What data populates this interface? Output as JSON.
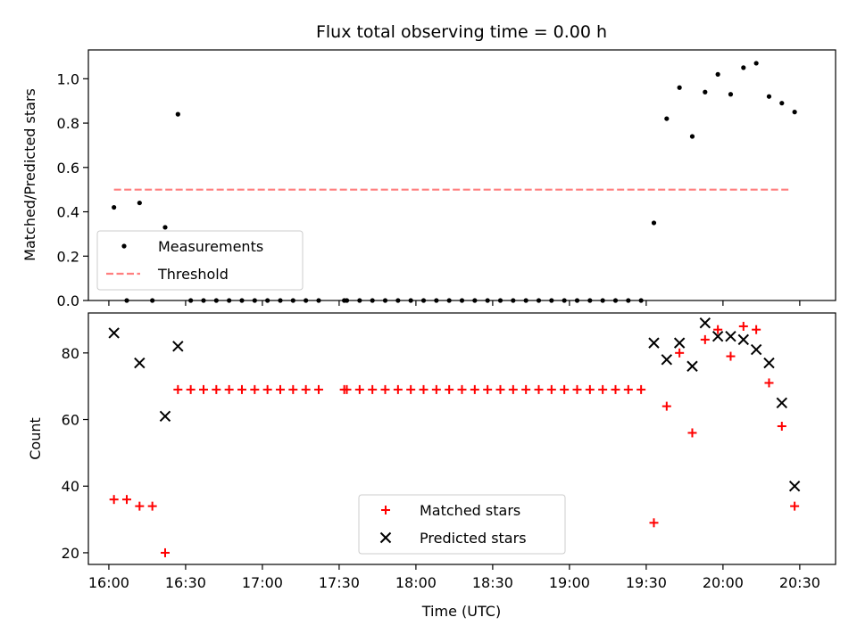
{
  "chart_data": [
    {
      "type": "scatter",
      "title": "Flux total observing time = 0.00 h",
      "xlabel": "",
      "ylabel": "Matched/Predicted stars",
      "xlim": [
        "15:52",
        "20:44"
      ],
      "ylim": [
        0,
        1.13
      ],
      "yticks": [
        "0.0",
        "0.2",
        "0.4",
        "0.6",
        "0.8",
        "1.0"
      ],
      "legend_placement": "lower-left",
      "series": [
        {
          "name": "Measurements",
          "color": "#000000",
          "marker": "dot",
          "points": [
            [
              "16:02",
              0.42
            ],
            [
              "16:07",
              0.0
            ],
            [
              "16:12",
              0.44
            ],
            [
              "16:17",
              0.0
            ],
            [
              "16:22",
              0.33
            ],
            [
              "16:27",
              0.84
            ],
            [
              "16:32",
              0.0
            ],
            [
              "16:37",
              0.0
            ],
            [
              "16:42",
              0.0
            ],
            [
              "16:47",
              0.0
            ],
            [
              "16:52",
              0.0
            ],
            [
              "16:57",
              0.0
            ],
            [
              "17:02",
              0.0
            ],
            [
              "17:07",
              0.0
            ],
            [
              "17:12",
              0.0
            ],
            [
              "17:17",
              0.0
            ],
            [
              "17:22",
              0.0
            ],
            [
              "17:32",
              0.0
            ],
            [
              "17:33",
              0.0
            ],
            [
              "17:38",
              0.0
            ],
            [
              "17:43",
              0.0
            ],
            [
              "17:48",
              0.0
            ],
            [
              "17:53",
              0.0
            ],
            [
              "17:58",
              0.0
            ],
            [
              "18:03",
              0.0
            ],
            [
              "18:08",
              0.0
            ],
            [
              "18:13",
              0.0
            ],
            [
              "18:18",
              0.0
            ],
            [
              "18:23",
              0.0
            ],
            [
              "18:28",
              0.0
            ],
            [
              "18:33",
              0.0
            ],
            [
              "18:38",
              0.0
            ],
            [
              "18:43",
              0.0
            ],
            [
              "18:48",
              0.0
            ],
            [
              "18:53",
              0.0
            ],
            [
              "18:58",
              0.0
            ],
            [
              "19:03",
              0.0
            ],
            [
              "19:08",
              0.0
            ],
            [
              "19:13",
              0.0
            ],
            [
              "19:18",
              0.0
            ],
            [
              "19:23",
              0.0
            ],
            [
              "19:28",
              0.0
            ],
            [
              "19:33",
              0.35
            ],
            [
              "19:38",
              0.82
            ],
            [
              "19:43",
              0.96
            ],
            [
              "19:48",
              0.74
            ],
            [
              "19:53",
              0.94
            ],
            [
              "19:58",
              1.02
            ],
            [
              "20:03",
              0.93
            ],
            [
              "20:08",
              1.05
            ],
            [
              "20:13",
              1.07
            ],
            [
              "20:18",
              0.92
            ],
            [
              "20:23",
              0.89
            ],
            [
              "20:28",
              0.85
            ]
          ]
        },
        {
          "name": "Threshold",
          "color": "#ff7f7f",
          "marker": "dashed-line",
          "points": [
            [
              "16:02",
              0.5
            ],
            [
              "20:26",
              0.5
            ]
          ]
        }
      ]
    },
    {
      "type": "scatter",
      "title": "",
      "xlabel": "Time (UTC)",
      "ylabel": "Count",
      "xlim": [
        "15:52",
        "20:44"
      ],
      "ylim": [
        16.5,
        92
      ],
      "yticks": [
        "20",
        "40",
        "60",
        "80"
      ],
      "xticks": [
        "16:00",
        "16:30",
        "17:00",
        "17:30",
        "18:00",
        "18:30",
        "19:00",
        "19:30",
        "20:00",
        "20:30"
      ],
      "legend_placement": "lower-center",
      "series": [
        {
          "name": "Matched stars",
          "color": "#ff0000",
          "marker": "plus",
          "points": [
            [
              "16:02",
              36
            ],
            [
              "16:07",
              36
            ],
            [
              "16:12",
              34
            ],
            [
              "16:17",
              34
            ],
            [
              "16:22",
              20
            ],
            [
              "16:27",
              69
            ],
            [
              "16:32",
              69
            ],
            [
              "16:37",
              69
            ],
            [
              "16:42",
              69
            ],
            [
              "16:47",
              69
            ],
            [
              "16:52",
              69
            ],
            [
              "16:57",
              69
            ],
            [
              "17:02",
              69
            ],
            [
              "17:07",
              69
            ],
            [
              "17:12",
              69
            ],
            [
              "17:17",
              69
            ],
            [
              "17:22",
              69
            ],
            [
              "17:32",
              69
            ],
            [
              "17:33",
              69
            ],
            [
              "17:38",
              69
            ],
            [
              "17:43",
              69
            ],
            [
              "17:48",
              69
            ],
            [
              "17:53",
              69
            ],
            [
              "17:58",
              69
            ],
            [
              "18:03",
              69
            ],
            [
              "18:08",
              69
            ],
            [
              "18:13",
              69
            ],
            [
              "18:18",
              69
            ],
            [
              "18:23",
              69
            ],
            [
              "18:28",
              69
            ],
            [
              "18:33",
              69
            ],
            [
              "18:38",
              69
            ],
            [
              "18:43",
              69
            ],
            [
              "18:48",
              69
            ],
            [
              "18:53",
              69
            ],
            [
              "18:58",
              69
            ],
            [
              "19:03",
              69
            ],
            [
              "19:08",
              69
            ],
            [
              "19:13",
              69
            ],
            [
              "19:18",
              69
            ],
            [
              "19:23",
              69
            ],
            [
              "19:28",
              69
            ],
            [
              "19:33",
              29
            ],
            [
              "19:38",
              64
            ],
            [
              "19:43",
              80
            ],
            [
              "19:48",
              56
            ],
            [
              "19:53",
              84
            ],
            [
              "19:58",
              87
            ],
            [
              "20:03",
              79
            ],
            [
              "20:08",
              88
            ],
            [
              "20:13",
              87
            ],
            [
              "20:18",
              71
            ],
            [
              "20:23",
              58
            ],
            [
              "20:28",
              34
            ]
          ]
        },
        {
          "name": "Predicted stars",
          "color": "#000000",
          "marker": "x",
          "points": [
            [
              "16:02",
              86
            ],
            [
              "16:12",
              77
            ],
            [
              "16:22",
              61
            ],
            [
              "16:27",
              82
            ],
            [
              "19:33",
              83
            ],
            [
              "19:38",
              78
            ],
            [
              "19:43",
              83
            ],
            [
              "19:48",
              76
            ],
            [
              "19:53",
              89
            ],
            [
              "19:58",
              85
            ],
            [
              "20:03",
              85
            ],
            [
              "20:08",
              84
            ],
            [
              "20:13",
              81
            ],
            [
              "20:18",
              77
            ],
            [
              "20:23",
              65
            ],
            [
              "20:28",
              40
            ]
          ]
        }
      ]
    }
  ]
}
